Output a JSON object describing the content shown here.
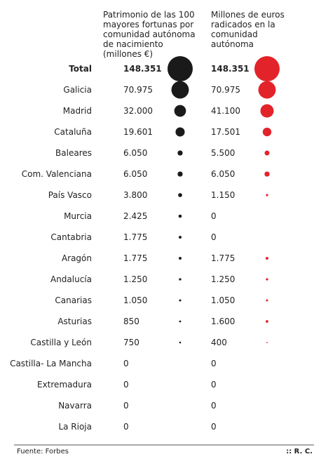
{
  "chart_data": {
    "type": "bubble-table",
    "categories": [
      "Total",
      "Galicia",
      "Madrid",
      "Cataluña",
      "Baleares",
      "Com. Valenciana",
      "País Vasco",
      "Murcia",
      "Cantabria",
      "Aragón",
      "Andalucía",
      "Canarias",
      "Asturias",
      "Castilla y León",
      "Castilla- La Mancha",
      "Extremadura",
      "Navarra",
      "La Rioja"
    ],
    "series": [
      {
        "name": "Patrimonio de las 100 mayores fortunas por comunidad autónoma de nacimiento (millones €)",
        "color": "#1a1a1a",
        "values": [
          148351,
          70975,
          32000,
          19601,
          6050,
          6050,
          3800,
          2425,
          1775,
          1775,
          1250,
          1050,
          850,
          750,
          0,
          0,
          0,
          0
        ],
        "value_labels": [
          "148.351",
          "70.975",
          "32.000",
          "19.601",
          "6.050",
          "6.050",
          "3.800",
          "2.425",
          "1.775",
          "1.775",
          "1.250",
          "1.050",
          "850",
          "750",
          "0",
          "0",
          "0",
          "0"
        ]
      },
      {
        "name": "Millones de euros radicados en la comunidad autónoma",
        "color": "#e3232a",
        "values": [
          148351,
          70975,
          41100,
          17501,
          5500,
          6050,
          1150,
          0,
          0,
          1775,
          1250,
          1050,
          1600,
          400,
          0,
          0,
          0,
          0
        ],
        "value_labels": [
          "148.351",
          "70.975",
          "41.100",
          "17.501",
          "5.500",
          "6.050",
          "1.150",
          "0",
          "0",
          "1.775",
          "1.250",
          "1.050",
          "1.600",
          "400",
          "0",
          "0",
          "0",
          "0"
        ]
      }
    ],
    "source": "Fuente: Forbes",
    "credit": ":: R. C."
  }
}
